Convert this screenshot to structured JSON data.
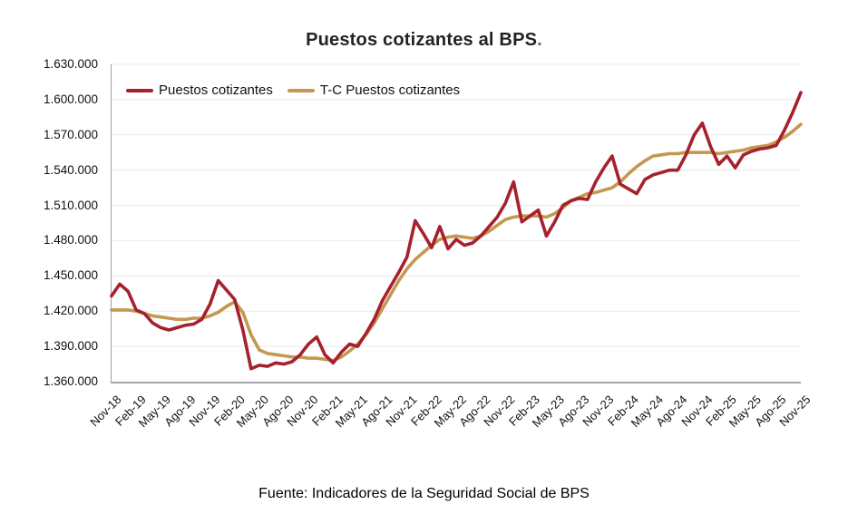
{
  "title": {
    "text": "Puestos cotizantes al BPS",
    "suffix": "."
  },
  "footer": "Fuente: Indicadores de la Seguridad Social de BPS",
  "chart_data": {
    "type": "line",
    "title": "Puestos cotizantes al BPS",
    "grid": "horizontal",
    "legend_position": "top-left-inside",
    "label_every": 3,
    "x_tick_labels": [
      "Nov-18",
      "Feb-19",
      "May-19",
      "Ago-19",
      "Nov-19",
      "Feb-20",
      "May-20",
      "Ago-20",
      "Nov-20",
      "Feb-21",
      "May-21",
      "Ago-21",
      "Nov-21",
      "Feb-22",
      "May-22",
      "Ago-22",
      "Nov-22",
      "Feb-23",
      "May-23",
      "Ago-23",
      "Nov-23",
      "Feb-24",
      "May-24",
      "Ago-24",
      "Nov-24",
      "Feb-25",
      "May-25",
      "Ago-25",
      "Nov-25"
    ],
    "y_axis": {
      "tick_labels": [
        "1.630.000",
        "1.600.000",
        "1.570.000",
        "1.540.000",
        "1.510.000",
        "1.480.000",
        "1.450.000",
        "1.420.000",
        "1.390.000",
        "1.360.000"
      ],
      "min": 1360000,
      "max": 1630000
    },
    "series": [
      {
        "name": "Puestos cotizantes",
        "color": "#A6212E",
        "values": [
          1433000,
          1443000,
          1437000,
          1421000,
          1418000,
          1410000,
          1406000,
          1404000,
          1406000,
          1408000,
          1409000,
          1413000,
          1426000,
          1446000,
          1438000,
          1430000,
          1404000,
          1371000,
          1374000,
          1373000,
          1376000,
          1375000,
          1377000,
          1383000,
          1392000,
          1398000,
          1383000,
          1376000,
          1385000,
          1392000,
          1390000,
          1401000,
          1413000,
          1429000,
          1441000,
          1453000,
          1466000,
          1497000,
          1486000,
          1474000,
          1492000,
          1473000,
          1481000,
          1476000,
          1478000,
          1484000,
          1492000,
          1500000,
          1512000,
          1530000,
          1496000,
          1501000,
          1506000,
          1484000,
          1496000,
          1510000,
          1514000,
          1516000,
          1515000,
          1530000,
          1542000,
          1552000,
          1528000,
          1524000,
          1520000,
          1532000,
          1536000,
          1538000,
          1540000,
          1540000,
          1553000,
          1570000,
          1580000,
          1560000,
          1545000,
          1552000,
          1542000,
          1553000,
          1556000,
          1558000,
          1559000,
          1561000,
          1574000,
          1589000,
          1606000
        ]
      },
      {
        "name": "T-C Puestos cotizantes",
        "color": "#C3984F",
        "values": [
          1421000,
          1421000,
          1421000,
          1420000,
          1418000,
          1416000,
          1415000,
          1414000,
          1413000,
          1413000,
          1414000,
          1414000,
          1416000,
          1419000,
          1424000,
          1428000,
          1419000,
          1400000,
          1387000,
          1384000,
          1383000,
          1382000,
          1381000,
          1381000,
          1380000,
          1380000,
          1379000,
          1378000,
          1381000,
          1386000,
          1392000,
          1400000,
          1410000,
          1422000,
          1434000,
          1446000,
          1456000,
          1464000,
          1470000,
          1476000,
          1481000,
          1483000,
          1484000,
          1483000,
          1482000,
          1484000,
          1488000,
          1493000,
          1498000,
          1500000,
          1501000,
          1501000,
          1501000,
          1500000,
          1503000,
          1508000,
          1514000,
          1517000,
          1520000,
          1521000,
          1523000,
          1525000,
          1530000,
          1537000,
          1543000,
          1548000,
          1552000,
          1553000,
          1554000,
          1554000,
          1555000,
          1555000,
          1555000,
          1555000,
          1554000,
          1555000,
          1556000,
          1557000,
          1559000,
          1560000,
          1561000,
          1564000,
          1568000,
          1573000,
          1579000
        ]
      }
    ]
  }
}
